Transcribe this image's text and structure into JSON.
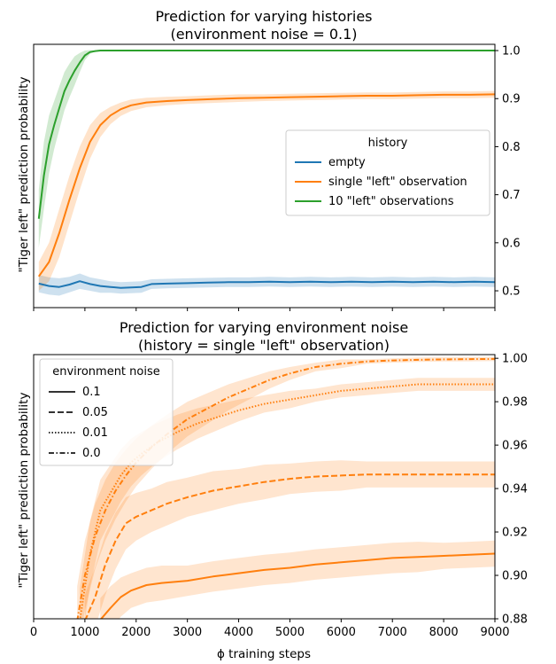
{
  "chart_data": [
    {
      "type": "line",
      "title": "Prediction for varying histories\n(environment noise = 0.1)",
      "ylabel": "\"Tiger left\" prediction probability",
      "xlabel": "",
      "xlim": [
        0,
        9000
      ],
      "ylim": [
        0.465,
        1.013
      ],
      "y_axis_side": "right",
      "x_ticks": [
        0,
        1000,
        2000,
        3000,
        4000,
        5000,
        6000,
        7000,
        8000,
        9000
      ],
      "x_tick_labels_shown": false,
      "y_ticks": [
        0.5,
        0.6,
        0.7,
        0.8,
        0.9,
        1.0
      ],
      "y_tick_labels": [
        "0.5",
        "0.6",
        "0.7",
        "0.8",
        "0.9",
        "1.0"
      ],
      "grid": false,
      "legend": {
        "title": "history",
        "placement": "center-right"
      },
      "series": [
        {
          "name": "empty",
          "color": "#1f77b4",
          "linestyle": "solid",
          "x": [
            100,
            300,
            500,
            700,
            900,
            1100,
            1300,
            1500,
            1700,
            1900,
            2100,
            2300,
            2600,
            3000,
            3400,
            3800,
            4200,
            4600,
            5000,
            5400,
            5800,
            6200,
            6600,
            7000,
            7400,
            7800,
            8200,
            8600,
            9000
          ],
          "values": [
            0.515,
            0.51,
            0.508,
            0.513,
            0.52,
            0.514,
            0.51,
            0.508,
            0.506,
            0.507,
            0.508,
            0.514,
            0.515,
            0.516,
            0.517,
            0.518,
            0.518,
            0.519,
            0.518,
            0.519,
            0.518,
            0.519,
            0.518,
            0.519,
            0.518,
            0.519,
            0.518,
            0.519,
            0.518
          ],
          "band": [
            0.018,
            0.018,
            0.018,
            0.016,
            0.016,
            0.014,
            0.014,
            0.012,
            0.012,
            0.012,
            0.012,
            0.01,
            0.01,
            0.01,
            0.01,
            0.01,
            0.01,
            0.01,
            0.01,
            0.01,
            0.01,
            0.01,
            0.01,
            0.01,
            0.01,
            0.01,
            0.01,
            0.01,
            0.01
          ]
        },
        {
          "name": "single \"left\" observation",
          "color": "#ff7f0e",
          "linestyle": "solid",
          "x": [
            100,
            300,
            500,
            700,
            900,
            1100,
            1300,
            1500,
            1700,
            1900,
            2200,
            2600,
            3000,
            3500,
            4000,
            4500,
            5000,
            5500,
            6000,
            6500,
            7000,
            7500,
            8000,
            8500,
            9000
          ],
          "values": [
            0.53,
            0.56,
            0.62,
            0.69,
            0.755,
            0.81,
            0.845,
            0.865,
            0.878,
            0.886,
            0.892,
            0.895,
            0.897,
            0.899,
            0.901,
            0.902,
            0.903,
            0.904,
            0.905,
            0.906,
            0.906,
            0.907,
            0.908,
            0.908,
            0.909
          ],
          "band": [
            0.03,
            0.04,
            0.05,
            0.05,
            0.045,
            0.035,
            0.025,
            0.018,
            0.014,
            0.012,
            0.01,
            0.009,
            0.008,
            0.008,
            0.008,
            0.007,
            0.007,
            0.007,
            0.007,
            0.007,
            0.007,
            0.007,
            0.007,
            0.007,
            0.007
          ]
        },
        {
          "name": "10 \"left\" observations",
          "color": "#2ca02c",
          "linestyle": "solid",
          "x": [
            100,
            200,
            300,
            400,
            500,
            600,
            700,
            800,
            900,
            1000,
            1100,
            1200,
            1300,
            1400,
            1600,
            2000,
            3000,
            4000,
            5000,
            6000,
            7000,
            8000,
            9000
          ],
          "values": [
            0.65,
            0.74,
            0.805,
            0.845,
            0.88,
            0.915,
            0.938,
            0.958,
            0.975,
            0.99,
            0.997,
            0.999,
            1.0,
            1.0,
            1.0,
            1.0,
            1.0,
            1.0,
            1.0,
            1.0,
            1.0,
            1.0,
            1.0
          ],
          "band": [
            0.06,
            0.07,
            0.06,
            0.05,
            0.045,
            0.04,
            0.035,
            0.03,
            0.02,
            0.01,
            0.004,
            0.001,
            0,
            0,
            0,
            0,
            0,
            0,
            0,
            0,
            0,
            0,
            0
          ]
        }
      ]
    },
    {
      "type": "line",
      "title": "Prediction for varying environment noise\n(history = single \"left\" observation)",
      "ylabel": "\"Tiger left\" prediction probability",
      "xlabel": "ϕ training steps",
      "xlim": [
        0,
        9000
      ],
      "ylim": [
        0.88,
        1.0017
      ],
      "y_axis_side": "right",
      "x_ticks": [
        0,
        1000,
        2000,
        3000,
        4000,
        5000,
        6000,
        7000,
        8000,
        9000
      ],
      "x_tick_labels": [
        "0",
        "1000",
        "2000",
        "3000",
        "4000",
        "5000",
        "6000",
        "7000",
        "8000",
        "9000"
      ],
      "y_ticks": [
        0.88,
        0.9,
        0.92,
        0.94,
        0.96,
        0.98,
        1.0
      ],
      "y_tick_labels": [
        "0.88",
        "0.90",
        "0.92",
        "0.94",
        "0.96",
        "0.98",
        "1.00"
      ],
      "grid": false,
      "legend": {
        "title": "environment noise",
        "placement": "upper-left"
      },
      "series": [
        {
          "name": "0.1",
          "color": "#ff7f0e",
          "linestyle": "solid",
          "x": [
            1300,
            1500,
            1700,
            1900,
            2200,
            2500,
            3000,
            3500,
            4000,
            4500,
            5000,
            5500,
            6000,
            6500,
            7000,
            7500,
            8000,
            8500,
            9000
          ],
          "values": [
            0.8795,
            0.885,
            0.89,
            0.893,
            0.8955,
            0.8965,
            0.8975,
            0.8995,
            0.901,
            0.9025,
            0.9035,
            0.905,
            0.906,
            0.907,
            0.908,
            0.9085,
            0.909,
            0.9095,
            0.91
          ],
          "band": [
            0.01,
            0.01,
            0.009,
            0.008,
            0.008,
            0.008,
            0.007,
            0.007,
            0.007,
            0.007,
            0.007,
            0.007,
            0.007,
            0.007,
            0.007,
            0.007,
            0.006,
            0.006,
            0.006
          ]
        },
        {
          "name": "0.05",
          "color": "#ff7f0e",
          "linestyle": "dashed",
          "x": [
            1000,
            1200,
            1400,
            1600,
            1800,
            2000,
            2300,
            2600,
            3000,
            3500,
            4000,
            4500,
            5000,
            5500,
            6000,
            6500,
            7000,
            7500,
            8000,
            8500,
            9000
          ],
          "values": [
            0.879,
            0.89,
            0.905,
            0.916,
            0.924,
            0.927,
            0.93,
            0.933,
            0.936,
            0.939,
            0.941,
            0.943,
            0.9445,
            0.9455,
            0.946,
            0.9465,
            0.9465,
            0.9465,
            0.9465,
            0.9465,
            0.9465
          ],
          "band": [
            0.012,
            0.014,
            0.014,
            0.013,
            0.012,
            0.011,
            0.01,
            0.01,
            0.009,
            0.009,
            0.008,
            0.008,
            0.007,
            0.007,
            0.007,
            0.006,
            0.006,
            0.006,
            0.006,
            0.006,
            0.006
          ]
        },
        {
          "name": "0.01",
          "color": "#ff7f0e",
          "linestyle": "dotted",
          "x": [
            900,
            1100,
            1300,
            1500,
            1700,
            1900,
            2100,
            2400,
            2800,
            3200,
            3600,
            4000,
            4500,
            5000,
            5500,
            6000,
            6500,
            7000,
            7500,
            8000,
            8500,
            9000
          ],
          "values": [
            0.879,
            0.91,
            0.93,
            0.938,
            0.946,
            0.952,
            0.956,
            0.961,
            0.966,
            0.97,
            0.973,
            0.976,
            0.979,
            0.981,
            0.983,
            0.985,
            0.986,
            0.987,
            0.988,
            0.988,
            0.988,
            0.988
          ],
          "band": [
            0.015,
            0.015,
            0.014,
            0.013,
            0.012,
            0.011,
            0.01,
            0.009,
            0.008,
            0.007,
            0.006,
            0.005,
            0.004,
            0.004,
            0.003,
            0.003,
            0.003,
            0.003,
            0.003,
            0.003,
            0.003,
            0.003
          ]
        },
        {
          "name": "0.0",
          "color": "#ff7f0e",
          "linestyle": "dashdot",
          "x": [
            850,
            1000,
            1200,
            1400,
            1600,
            1800,
            2000,
            2300,
            2600,
            3000,
            3400,
            3800,
            4200,
            4600,
            5000,
            5500,
            6000,
            6500,
            7000,
            7500,
            8000,
            8500,
            9000
          ],
          "values": [
            0.879,
            0.9,
            0.918,
            0.93,
            0.939,
            0.946,
            0.952,
            0.959,
            0.965,
            0.972,
            0.977,
            0.982,
            0.986,
            0.99,
            0.993,
            0.996,
            0.9975,
            0.9985,
            0.999,
            0.9993,
            0.9995,
            0.9996,
            0.9997
          ],
          "band": [
            0.016,
            0.016,
            0.015,
            0.014,
            0.013,
            0.012,
            0.011,
            0.01,
            0.009,
            0.008,
            0.007,
            0.006,
            0.005,
            0.004,
            0.003,
            0.002,
            0.002,
            0.001,
            0.001,
            0.001,
            0.001,
            0.001,
            0.001
          ]
        }
      ]
    }
  ]
}
